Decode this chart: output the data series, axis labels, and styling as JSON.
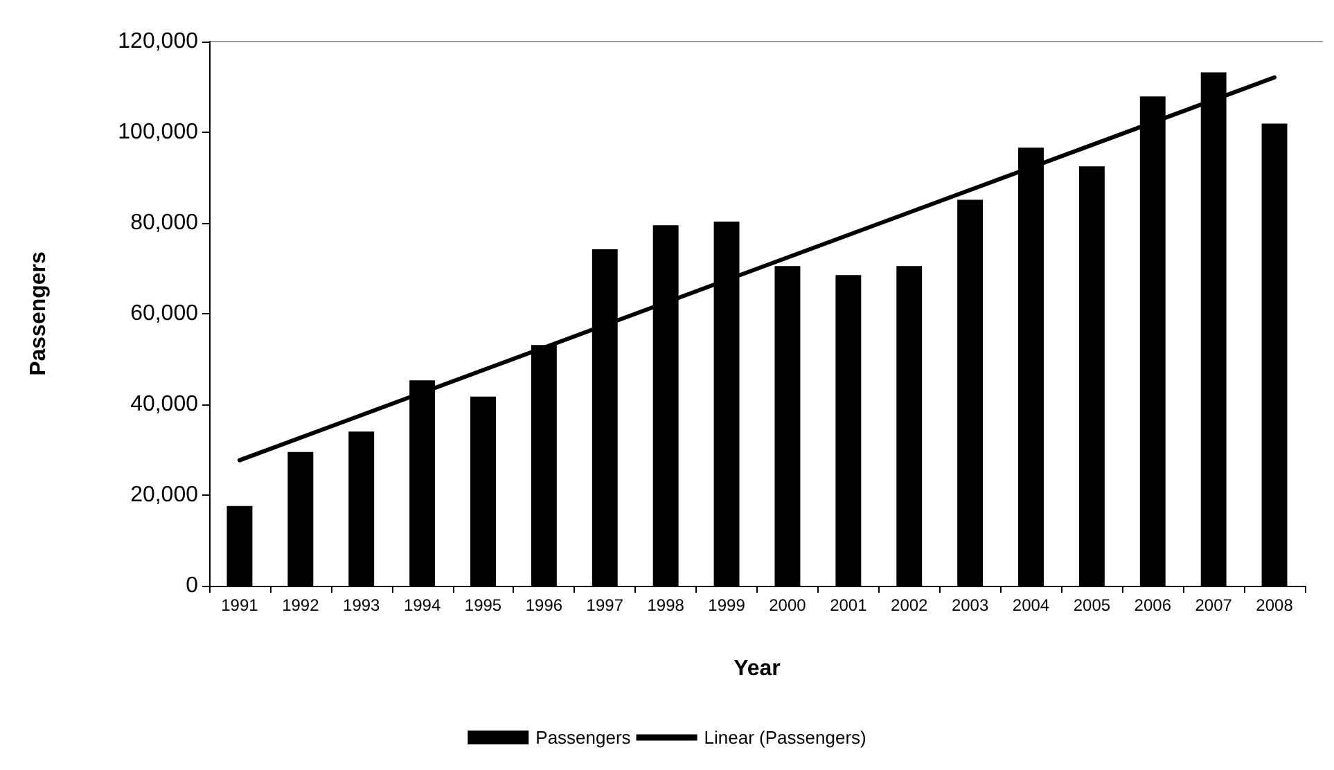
{
  "chart_data": {
    "type": "bar",
    "xlabel": "Year",
    "ylabel": "Passengers",
    "categories": [
      "1991",
      "1992",
      "1993",
      "1994",
      "1995",
      "1996",
      "1997",
      "1998",
      "1999",
      "2000",
      "2001",
      "2002",
      "2003",
      "2004",
      "2005",
      "2006",
      "2007",
      "2008"
    ],
    "series": [
      {
        "name": "Passengers",
        "color": "#000000",
        "values": [
          17600,
          29500,
          34000,
          45300,
          41700,
          53100,
          74200,
          79500,
          80300,
          70500,
          68500,
          70500,
          85100,
          96600,
          92500,
          107900,
          113200,
          101900
        ]
      },
      {
        "name": "Linear (Passengers)",
        "type": "line",
        "color": "#000000",
        "values": [
          27700,
          null,
          null,
          null,
          null,
          null,
          null,
          null,
          null,
          null,
          null,
          null,
          null,
          null,
          null,
          null,
          null,
          112100
        ]
      }
    ],
    "ylim": [
      0,
      120000
    ],
    "yticks": [
      {
        "value": 0,
        "label": "0"
      },
      {
        "value": 20000,
        "label": "20,000"
      },
      {
        "value": 40000,
        "label": "40,000"
      },
      {
        "value": 60000,
        "label": "60,000"
      },
      {
        "value": 80000,
        "label": "80,000"
      },
      {
        "value": 100000,
        "label": "100,000"
      },
      {
        "value": 120000,
        "label": "120,000"
      }
    ],
    "grid": false,
    "legend": "bottom",
    "marker": "none",
    "line_style": "solid"
  }
}
